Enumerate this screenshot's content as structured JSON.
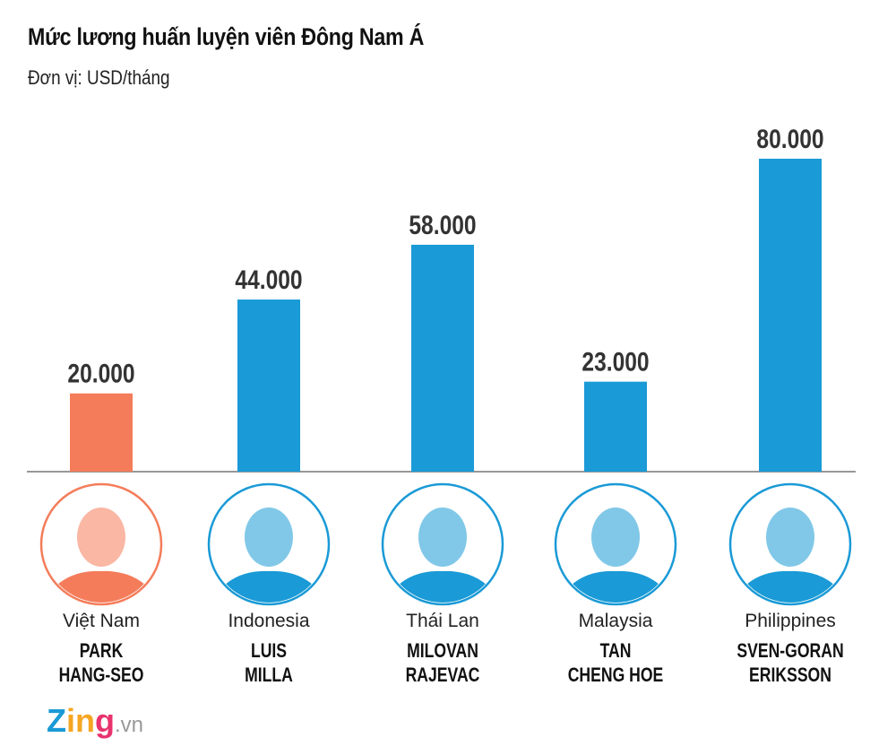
{
  "title": "Mức lương huấn luyện viên Đông Nam Á",
  "subtitle": "Đơn vị: USD/tháng",
  "logo": {
    "brand": "Zing",
    "suffix": ".vn"
  },
  "colors": {
    "highlight": "#F47C5A",
    "bar": "#1A9AD6",
    "axis": "#777777"
  },
  "chart_data": {
    "type": "bar",
    "title": "Mức lương huấn luyện viên Đông Nam Á",
    "ylabel": "Đơn vị: USD/tháng",
    "categories": [
      "Việt Nam",
      "Indonesia",
      "Thái Lan",
      "Malaysia",
      "Philippines"
    ],
    "coaches": [
      [
        "PARK",
        "HANG-SEO"
      ],
      [
        "LUIS",
        "MILLA"
      ],
      [
        "MILOVAN",
        "RAJEVAC"
      ],
      [
        "TAN",
        "CHENG HOE"
      ],
      [
        "SVEN-GORAN",
        "ERIKSSON"
      ]
    ],
    "values": [
      20000,
      44000,
      58000,
      23000,
      80000
    ],
    "value_labels": [
      "20.000",
      "44.000",
      "58.000",
      "23.000",
      "80.000"
    ],
    "highlight_index": 0,
    "ylim": [
      0,
      80000
    ],
    "grid": false
  }
}
